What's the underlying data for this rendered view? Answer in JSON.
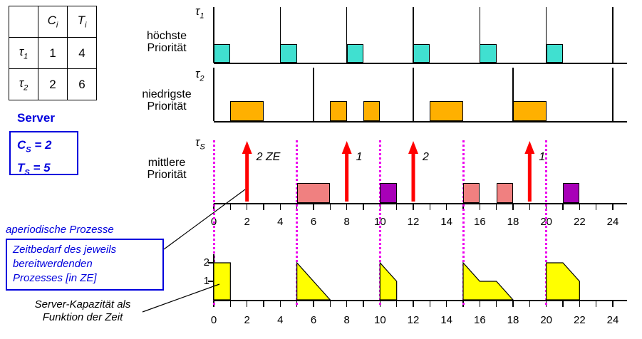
{
  "colors": {
    "tau1_block": "#40E0D0",
    "tau2_block": "#FFB000",
    "server_block_pink": "#F08080",
    "server_block_purple": "#A800B8",
    "arrow_red": "#FF0000",
    "replenish_magenta": "#EE00EE",
    "capacity_yellow": "#FFFF00",
    "annotation_blue": "#0000DD"
  },
  "param_table": {
    "corner": "",
    "col_headers": [
      {
        "sym": "C",
        "sub": "i"
      },
      {
        "sym": "T",
        "sub": "i"
      }
    ],
    "rows": [
      {
        "task_sym": "τ",
        "task_sub": "1",
        "c": "1",
        "t": "4"
      },
      {
        "task_sym": "τ",
        "task_sub": "2",
        "c": "2",
        "t": "6"
      }
    ]
  },
  "server_panel": {
    "heading": "Server",
    "params": [
      {
        "sym": "C",
        "sub": "S",
        "val": " = 2"
      },
      {
        "sym": "T",
        "sub": "S",
        "val": " = 5"
      }
    ]
  },
  "annotations": {
    "aperiodic": "aperiodische Prozesse",
    "zeitbedarf_box": "Zeitbedarf des jeweils\nbereitwerdenden\nProzesses [in ZE]",
    "capacity_note": "Server-Kapazität als\nFunktion der Zeit"
  },
  "row_labels": {
    "tau1": {
      "sym": "τ",
      "sub": "1",
      "priority": "höchste\nPriorität"
    },
    "tau2": {
      "sym": "τ",
      "sub": "2",
      "priority": "niedrigste\nPriorität"
    },
    "server": {
      "sym": "τ",
      "sub": "S",
      "priority": "mittlere\nPriorität"
    }
  },
  "chart_data": {
    "type": "gantt",
    "time_axis": {
      "min": 0,
      "max": 24,
      "tick_step": 1,
      "label_step": 2
    },
    "rows": [
      {
        "id": "tau1",
        "releases": [
          0,
          4,
          8,
          12,
          16,
          20,
          24
        ],
        "executions": [
          {
            "start": 0,
            "end": 1
          },
          {
            "start": 4,
            "end": 5
          },
          {
            "start": 8,
            "end": 9
          },
          {
            "start": 12,
            "end": 13
          },
          {
            "start": 16,
            "end": 17
          },
          {
            "start": 20,
            "end": 21
          }
        ],
        "color": "#40E0D0"
      },
      {
        "id": "tau2",
        "releases": [
          0,
          6,
          12,
          18,
          24
        ],
        "executions": [
          {
            "start": 1,
            "end": 3
          },
          {
            "start": 7,
            "end": 8
          },
          {
            "start": 9,
            "end": 10
          },
          {
            "start": 13,
            "end": 15
          },
          {
            "start": 18,
            "end": 20
          }
        ],
        "color": "#FFB000"
      },
      {
        "id": "server",
        "replenishments": [
          0,
          5,
          10,
          15,
          20
        ],
        "executions": [
          {
            "start": 5,
            "end": 7,
            "color": "#F08080"
          },
          {
            "start": 10,
            "end": 11,
            "color": "#A800B8"
          },
          {
            "start": 15,
            "end": 16,
            "color": "#F08080"
          },
          {
            "start": 17,
            "end": 18,
            "color": "#F08080"
          },
          {
            "start": 21,
            "end": 22,
            "color": "#A800B8"
          }
        ]
      }
    ],
    "aperiodic_arrivals": [
      {
        "time": 2,
        "label": "2 ZE"
      },
      {
        "time": 8,
        "label": "1"
      },
      {
        "time": 12,
        "label": "2"
      },
      {
        "time": 19,
        "label": "1"
      }
    ],
    "capacity_chart": {
      "ylabels": [
        {
          "value": 2,
          "label": "2"
        },
        {
          "value": 1,
          "label": "1"
        }
      ],
      "segments": [
        [
          [
            0,
            0
          ],
          [
            0,
            2
          ],
          [
            1,
            2
          ],
          [
            1,
            0
          ]
        ],
        [
          [
            5,
            0
          ],
          [
            5,
            2
          ],
          [
            7,
            0
          ]
        ],
        [
          [
            10,
            0
          ],
          [
            10,
            2
          ],
          [
            11,
            1
          ],
          [
            11,
            0
          ]
        ],
        [
          [
            15,
            0
          ],
          [
            15,
            2
          ],
          [
            16,
            1
          ],
          [
            17,
            1
          ],
          [
            18,
            0
          ]
        ],
        [
          [
            20,
            0
          ],
          [
            20,
            2
          ],
          [
            21,
            2
          ],
          [
            22,
            1
          ],
          [
            22,
            0
          ]
        ]
      ]
    }
  }
}
